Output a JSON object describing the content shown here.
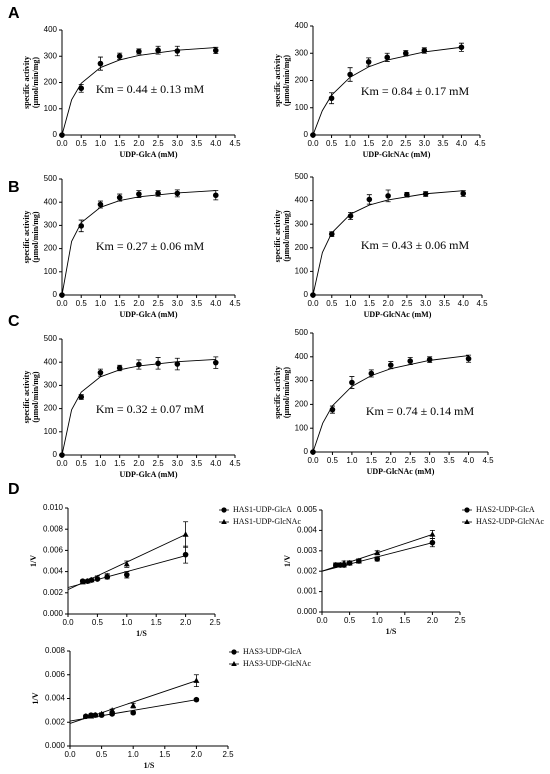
{
  "chart_data": [
    {
      "type": "scatter",
      "panel": "A",
      "xlabel": "UDP-GlcA (mM)",
      "ylabel": [
        "specific activity",
        "(μmol/min/mg)"
      ],
      "annotation": "Km = 0.44 ± 0.13 mM",
      "xlim": [
        0,
        4.5
      ],
      "xticks": [
        {
          "value": 0,
          "label": "0.0"
        },
        0.5,
        {
          "value": 1,
          "label": "1.0"
        },
        1.5,
        {
          "value": 2,
          "label": "2.0"
        },
        2.5,
        {
          "value": 3,
          "label": "3.0"
        },
        3.5,
        {
          "value": 4,
          "label": "4.0"
        },
        4.5
      ],
      "ylim": [
        0,
        400
      ],
      "yticks": [
        0,
        100,
        200,
        300,
        400
      ],
      "series": [
        {
          "color": "#000000",
          "marker": "circle",
          "x": [
            0,
            0.5,
            1,
            1.5,
            2,
            2.5,
            3,
            4
          ],
          "values": [
            0,
            178,
            272,
            300,
            318,
            323,
            320,
            322
          ],
          "errors": [
            null,
            15,
            25,
            12,
            10,
            15,
            18,
            12
          ],
          "fit": {
            "x": [
              0,
              0.25,
              0.5,
              1,
              1.5,
              2,
              3,
              4
            ],
            "values": [
              0,
              134,
              197,
              257,
              286,
              303,
              323,
              333
            ]
          }
        }
      ]
    },
    {
      "type": "scatter",
      "xlabel": "UDP-GlcNAc (mM)",
      "ylabel": [
        "specific activity",
        "(μmol/min/mg)"
      ],
      "annotation": "Km = 0.84 ± 0.17 mM",
      "xlim": [
        0,
        4.5
      ],
      "xticks": [
        {
          "value": 0,
          "label": "0.0"
        },
        0.5,
        {
          "value": 1,
          "label": "1.0"
        },
        1.5,
        {
          "value": 2,
          "label": "2.0"
        },
        2.5,
        {
          "value": 3,
          "label": "3.0"
        },
        3.5,
        {
          "value": 4,
          "label": "4.0"
        },
        4.5
      ],
      "ylim": [
        0,
        400
      ],
      "yticks": [
        0,
        100,
        200,
        300,
        400
      ],
      "series": [
        {
          "color": "#000000",
          "marker": "circle",
          "x": [
            0,
            0.5,
            1,
            1.5,
            2,
            2.5,
            3,
            4
          ],
          "values": [
            0,
            135,
            222,
            268,
            285,
            300,
            310,
            322
          ],
          "errors": [
            null,
            20,
            25,
            15,
            15,
            10,
            10,
            15
          ],
          "fit": {
            "x": [
              0,
              0.25,
              0.5,
              1,
              1.5,
              2,
              3,
              4
            ],
            "values": [
              0,
              89,
              146,
              212,
              250,
              275,
              305,
              322
            ]
          }
        }
      ]
    },
    {
      "type": "scatter",
      "panel": "B",
      "xlabel": "UDP-GlcA (mM)",
      "ylabel": [
        "specific activity",
        "(μmol/min/mg)"
      ],
      "annotation": "Km = 0.27 ± 0.06 mM",
      "xlim": [
        0,
        4.5
      ],
      "xticks": [
        {
          "value": 0,
          "label": "0.0"
        },
        0.5,
        {
          "value": 1,
          "label": "1.0"
        },
        1.5,
        {
          "value": 2,
          "label": "2.0"
        },
        2.5,
        {
          "value": 3,
          "label": "3.0"
        },
        3.5,
        {
          "value": 4,
          "label": "4.0"
        },
        4.5
      ],
      "ylim": [
        0,
        500
      ],
      "yticks": [
        0,
        100,
        200,
        300,
        400,
        500
      ],
      "series": [
        {
          "color": "#000000",
          "marker": "circle",
          "x": [
            0,
            0.5,
            1,
            1.5,
            2,
            2.5,
            3,
            4
          ],
          "values": [
            0,
            298,
            390,
            420,
            435,
            438,
            438,
            430
          ],
          "errors": [
            null,
            25,
            15,
            15,
            15,
            12,
            15,
            20
          ],
          "fit": {
            "x": [
              0,
              0.25,
              0.5,
              1,
              1.5,
              2,
              3,
              4
            ],
            "values": [
              0,
              231,
              312,
              378,
              407,
              423,
              440,
              450
            ]
          }
        }
      ]
    },
    {
      "type": "scatter",
      "xlabel": "UDP-GlcNAc (mM)",
      "ylabel": [
        "specific activity",
        "(μmol/min/mg)"
      ],
      "annotation": "Km = 0.43 ± 0.06 mM",
      "xlim": [
        0,
        4.5
      ],
      "xticks": [
        {
          "value": 0,
          "label": "0.0"
        },
        0.5,
        {
          "value": 1,
          "label": "1.0"
        },
        1.5,
        {
          "value": 2,
          "label": "2.0"
        },
        2.5,
        {
          "value": 3,
          "label": "3.0"
        },
        3.5,
        {
          "value": 4,
          "label": "4.0"
        },
        4.5
      ],
      "ylim": [
        0,
        500
      ],
      "yticks": [
        0,
        100,
        200,
        300,
        400,
        500
      ],
      "series": [
        {
          "color": "#000000",
          "marker": "circle",
          "x": [
            0,
            0.5,
            1,
            1.5,
            2,
            2.5,
            3,
            4
          ],
          "values": [
            0,
            258,
            335,
            405,
            420,
            425,
            428,
            430
          ],
          "errors": [
            null,
            10,
            15,
            20,
            25,
            10,
            10,
            12
          ],
          "fit": {
            "x": [
              0,
              0.25,
              0.5,
              1,
              1.5,
              2,
              3,
              4
            ],
            "values": [
              0,
              180,
              263,
              343,
              381,
              403,
              429,
              442
            ]
          }
        }
      ]
    },
    {
      "type": "scatter",
      "panel": "C",
      "xlabel": "UDP-GlcA (mM)",
      "ylabel": [
        "specific activity",
        "(μmol/min/mg)"
      ],
      "annotation": "Km = 0.32 ± 0.07 mM",
      "xlim": [
        0,
        4.5
      ],
      "xticks": [
        {
          "value": 0,
          "label": "0.0"
        },
        0.5,
        {
          "value": 1,
          "label": "1.0"
        },
        1.5,
        {
          "value": 2,
          "label": "2.0"
        },
        2.5,
        {
          "value": 3,
          "label": "3.0"
        },
        3.5,
        {
          "value": 4,
          "label": "4.0"
        },
        4.5
      ],
      "ylim": [
        0,
        500
      ],
      "yticks": [
        0,
        100,
        200,
        300,
        400,
        500
      ],
      "series": [
        {
          "color": "#000000",
          "marker": "circle",
          "x": [
            0,
            0.5,
            1,
            1.5,
            2,
            2.5,
            3,
            4
          ],
          "values": [
            0,
            250,
            355,
            375,
            390,
            395,
            392,
            398
          ],
          "errors": [
            null,
            10,
            15,
            12,
            20,
            25,
            25,
            25
          ],
          "fit": {
            "x": [
              0,
              0.25,
              0.5,
              1,
              1.5,
              2,
              3,
              4
            ],
            "values": [
              0,
              195,
              271,
              337,
              367,
              384,
              402,
              412
            ]
          }
        }
      ]
    },
    {
      "type": "scatter",
      "xlabel": "UDP-GlcNAc (mM)",
      "ylabel": [
        "specific activity",
        "(μmol/min/mg)"
      ],
      "annotation": "Km = 0.74 ± 0.14 mM",
      "xlim": [
        0,
        4.5
      ],
      "xticks": [
        {
          "value": 0,
          "label": "0.0"
        },
        0.5,
        {
          "value": 1,
          "label": "1.0"
        },
        1.5,
        {
          "value": 2,
          "label": "2.0"
        },
        2.5,
        {
          "value": 3,
          "label": "3.0"
        },
        3.5,
        {
          "value": 4,
          "label": "4.0"
        },
        4.5
      ],
      "ylim": [
        0,
        500
      ],
      "yticks": [
        0,
        100,
        200,
        300,
        400,
        500
      ],
      "series": [
        {
          "color": "#000000",
          "marker": "circle",
          "x": [
            0,
            0.5,
            1,
            1.5,
            2,
            2.5,
            3,
            4
          ],
          "values": [
            0,
            178,
            292,
            330,
            365,
            382,
            388,
            392
          ],
          "errors": [
            null,
            15,
            25,
            15,
            15,
            15,
            12,
            15
          ],
          "fit": {
            "x": [
              0,
              0.25,
              0.5,
              1,
              1.5,
              2,
              3,
              4
            ],
            "values": [
              0,
              121,
              194,
              276,
              321,
              350,
              385,
              405
            ]
          }
        }
      ]
    },
    {
      "type": "scatter",
      "panel": "D",
      "xlabel": "1/S",
      "ylabel": [
        "1/V"
      ],
      "xlim": [
        0,
        2.5
      ],
      "xticks": [
        {
          "value": 0,
          "label": "0.0"
        },
        0.5,
        {
          "value": 1,
          "label": "1.0"
        },
        1.5,
        {
          "value": 2,
          "label": "2.0"
        },
        2.5
      ],
      "ylim": [
        0,
        0.01
      ],
      "yticks": [
        {
          "value": 0,
          "label": "0.000"
        },
        {
          "value": 0.002,
          "label": "0.002"
        },
        {
          "value": 0.004,
          "label": "0.004"
        },
        {
          "value": 0.006,
          "label": "0.006"
        },
        {
          "value": 0.008,
          "label": "0.008"
        },
        {
          "value": 0.01,
          "label": "0.010"
        }
      ],
      "series": [
        {
          "name": "HAS1-UDP-GlcA",
          "color": "#000000",
          "marker": "circle",
          "x": [
            0.25,
            0.333,
            0.4,
            0.5,
            0.667,
            1,
            2
          ],
          "values": [
            0.0031,
            0.0031,
            0.0032,
            0.0033,
            0.0035,
            0.0037,
            0.0056
          ],
          "errors": [
            0.0001,
            0.0001,
            0.0001,
            0.0001,
            0.0002,
            0.0003,
            0.0008
          ],
          "fit": {
            "x": [
              0,
              2
            ],
            "values": [
              0.0025,
              0.0055
            ]
          }
        },
        {
          "name": "HAS1-UDP-GlcNAc",
          "color": "#000000",
          "marker": "triangle",
          "x": [
            0.25,
            0.333,
            0.4,
            0.5,
            0.667,
            1,
            2
          ],
          "values": [
            0.003,
            0.0031,
            0.0032,
            0.0034,
            0.0036,
            0.0047,
            0.0075
          ],
          "errors": [
            0.0001,
            0.0001,
            0.0001,
            0.0002,
            0.0002,
            0.0003,
            0.0012
          ],
          "fit": {
            "x": [
              0,
              2
            ],
            "values": [
              0.0023,
              0.0075
            ]
          }
        }
      ]
    },
    {
      "type": "scatter",
      "xlabel": "1/S",
      "ylabel": [
        "1/V"
      ],
      "xlim": [
        0,
        2.5
      ],
      "xticks": [
        {
          "value": 0,
          "label": "0.0"
        },
        0.5,
        {
          "value": 1,
          "label": "1.0"
        },
        1.5,
        {
          "value": 2,
          "label": "2.0"
        },
        2.5
      ],
      "ylim": [
        0,
        0.005
      ],
      "yticks": [
        {
          "value": 0,
          "label": "0.000"
        },
        0.001,
        0.002,
        0.003,
        0.004,
        0.005
      ],
      "series": [
        {
          "name": "HAS2-UDP-GlcA",
          "color": "#000000",
          "marker": "circle",
          "x": [
            0.25,
            0.333,
            0.4,
            0.5,
            0.667,
            1,
            2
          ],
          "values": [
            0.0023,
            0.0023,
            0.0023,
            0.0024,
            0.0025,
            0.0026,
            0.0034
          ],
          "errors": [
            0.0001,
            0.0001,
            0.0001,
            0.0001,
            0.0001,
            0.0001,
            0.0002
          ],
          "fit": {
            "x": [
              0,
              2
            ],
            "values": [
              0.002,
              0.0034
            ]
          }
        },
        {
          "name": "HAS2-UDP-GlcNAc",
          "color": "#000000",
          "marker": "triangle",
          "x": [
            0.25,
            0.333,
            0.4,
            0.5,
            0.667,
            1,
            2
          ],
          "values": [
            0.0023,
            0.0023,
            0.0024,
            0.0024,
            0.0025,
            0.0029,
            0.0038
          ],
          "errors": [
            0.0001,
            0.0001,
            0.0001,
            0.0001,
            0.0001,
            0.0001,
            0.0002
          ],
          "fit": {
            "x": [
              0,
              2
            ],
            "values": [
              0.002,
              0.0038
            ]
          }
        }
      ]
    },
    {
      "type": "scatter",
      "xlabel": "1/S",
      "ylabel": [
        "1/V"
      ],
      "xlim": [
        0,
        2.5
      ],
      "xticks": [
        {
          "value": 0,
          "label": "0.0"
        },
        0.5,
        {
          "value": 1,
          "label": "1.0"
        },
        1.5,
        {
          "value": 2,
          "label": "2.0"
        },
        2.5
      ],
      "ylim": [
        0,
        0.008
      ],
      "yticks": [
        {
          "value": 0,
          "label": "0.000"
        },
        0.002,
        0.004,
        0.006,
        0.008
      ],
      "series": [
        {
          "name": "HAS3-UDP-GlcA",
          "color": "#000000",
          "marker": "circle",
          "x": [
            0.25,
            0.333,
            0.4,
            0.5,
            0.667,
            1,
            2
          ],
          "values": [
            0.0025,
            0.0026,
            0.0026,
            0.0026,
            0.0027,
            0.0028,
            0.0039
          ],
          "errors": [
            0.0001,
            0.0001,
            0.0001,
            0.0001,
            0.0001,
            0.0001,
            0.0001
          ],
          "fit": {
            "x": [
              0,
              2
            ],
            "values": [
              0.0021,
              0.0039
            ]
          }
        },
        {
          "name": "HAS3-UDP-GlcNAc",
          "color": "#000000",
          "marker": "triangle",
          "x": [
            0.25,
            0.333,
            0.4,
            0.5,
            0.667,
            1,
            2
          ],
          "values": [
            0.0025,
            0.0025,
            0.0026,
            0.0027,
            0.003,
            0.0034,
            0.0055
          ],
          "errors": [
            0.0001,
            0.0001,
            0.0001,
            0.0001,
            0.0001,
            0.0002,
            0.0005
          ],
          "fit": {
            "x": [
              0,
              2
            ],
            "values": [
              0.0019,
              0.0055
            ]
          }
        }
      ]
    }
  ]
}
